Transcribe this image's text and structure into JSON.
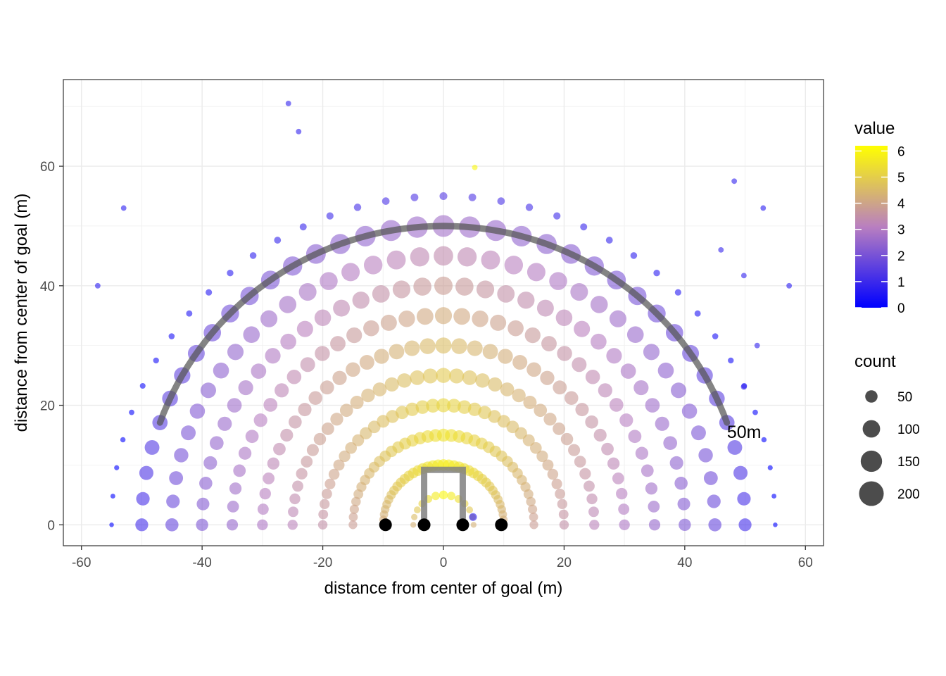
{
  "chart_data": {
    "type": "scatter",
    "xlabel": "distance from center of goal (m)",
    "ylabel": "distance from center of goal (m)",
    "xlim": [
      -63,
      63
    ],
    "ylim": [
      -3.5,
      74.5
    ],
    "x_ticks": [
      -60,
      -40,
      -20,
      0,
      20,
      40,
      60
    ],
    "y_ticks": [
      0,
      20,
      40,
      60
    ],
    "x_tick_labels": [
      "-60",
      "-40",
      "-20",
      "0",
      "20",
      "40",
      "60"
    ],
    "y_tick_labels": [
      "0",
      "20",
      "40",
      "60"
    ],
    "grid": true,
    "legend_position": "right",
    "color_legend": {
      "title": "value",
      "min": 0,
      "max": 6.2,
      "low_color": "#0000ff",
      "mid_color": "#b97fc0",
      "high_color": "#ffff00",
      "breaks": [
        0,
        1,
        2,
        3,
        4,
        5,
        6
      ],
      "labels": [
        "0",
        "1",
        "2",
        "3",
        "4",
        "5",
        "6"
      ]
    },
    "size_legend": {
      "title": "count",
      "breaks": [
        50,
        100,
        150,
        200
      ],
      "labels": [
        "50",
        "100",
        "150",
        "200"
      ]
    },
    "point_opacity": 0.6,
    "arc": {
      "radius_m": 50,
      "from_deg": 20,
      "to_deg": 160,
      "color": "#555555",
      "label": "50m",
      "label_x": 47,
      "label_y": 14.5
    },
    "goal_posts": {
      "color": "#808080",
      "dots_x": [
        -9.6,
        -3.2,
        3.2,
        9.6
      ],
      "posts_x": [
        -3.2,
        3.2
      ],
      "crossbar_y": 9.2
    },
    "rings": [
      {
        "r": 5,
        "step": 15,
        "value": 6.0,
        "count": 25
      },
      {
        "r": 10,
        "step": 5,
        "value": 5.8,
        "count": 45
      },
      {
        "r": 15,
        "step": 5,
        "value": 5.5,
        "count": 55
      },
      {
        "r": 20,
        "step": 5,
        "value": 5.2,
        "count": 65
      },
      {
        "r": 25,
        "step": 5,
        "value": 4.9,
        "count": 75
      },
      {
        "r": 30,
        "step": 5,
        "value": 4.6,
        "count": 85
      },
      {
        "r": 35,
        "step": 5,
        "value": 4.2,
        "count": 95
      },
      {
        "r": 40,
        "step": 5,
        "value": 3.8,
        "count": 110
      },
      {
        "r": 45,
        "step": 5,
        "value": 3.4,
        "count": 125
      },
      {
        "r": 50,
        "step": 5,
        "value": 2.7,
        "count": 155
      },
      {
        "r": 55,
        "step": 5,
        "value": 1.4,
        "count": 20
      }
    ],
    "extra_points": [
      {
        "x": -25.7,
        "y": 70.5,
        "value": 0.8,
        "count": 10
      },
      {
        "x": -24.0,
        "y": 65.8,
        "value": 0.8,
        "count": 10
      },
      {
        "x": 5.2,
        "y": 59.8,
        "value": 6.0,
        "count": 10
      },
      {
        "x": -57.3,
        "y": 40.0,
        "value": 0.7,
        "count": 10
      },
      {
        "x": 57.3,
        "y": 40.0,
        "value": 0.7,
        "count": 10
      },
      {
        "x": -53.0,
        "y": 53.0,
        "value": 0.7,
        "count": 10
      },
      {
        "x": 53.0,
        "y": 53.0,
        "value": 0.7,
        "count": 10
      },
      {
        "x": 48.2,
        "y": 57.5,
        "value": 0.8,
        "count": 10
      },
      {
        "x": 49.8,
        "y": 41.7,
        "value": 0.8,
        "count": 10
      },
      {
        "x": 52.0,
        "y": 30.0,
        "value": 0.8,
        "count": 10
      },
      {
        "x": 49.8,
        "y": 23.1,
        "value": 0.9,
        "count": 12
      },
      {
        "x": 46.0,
        "y": 46.0,
        "value": 0.9,
        "count": 10
      },
      {
        "x": 4.9,
        "y": 1.3,
        "value": 0.6,
        "count": 20
      }
    ]
  }
}
